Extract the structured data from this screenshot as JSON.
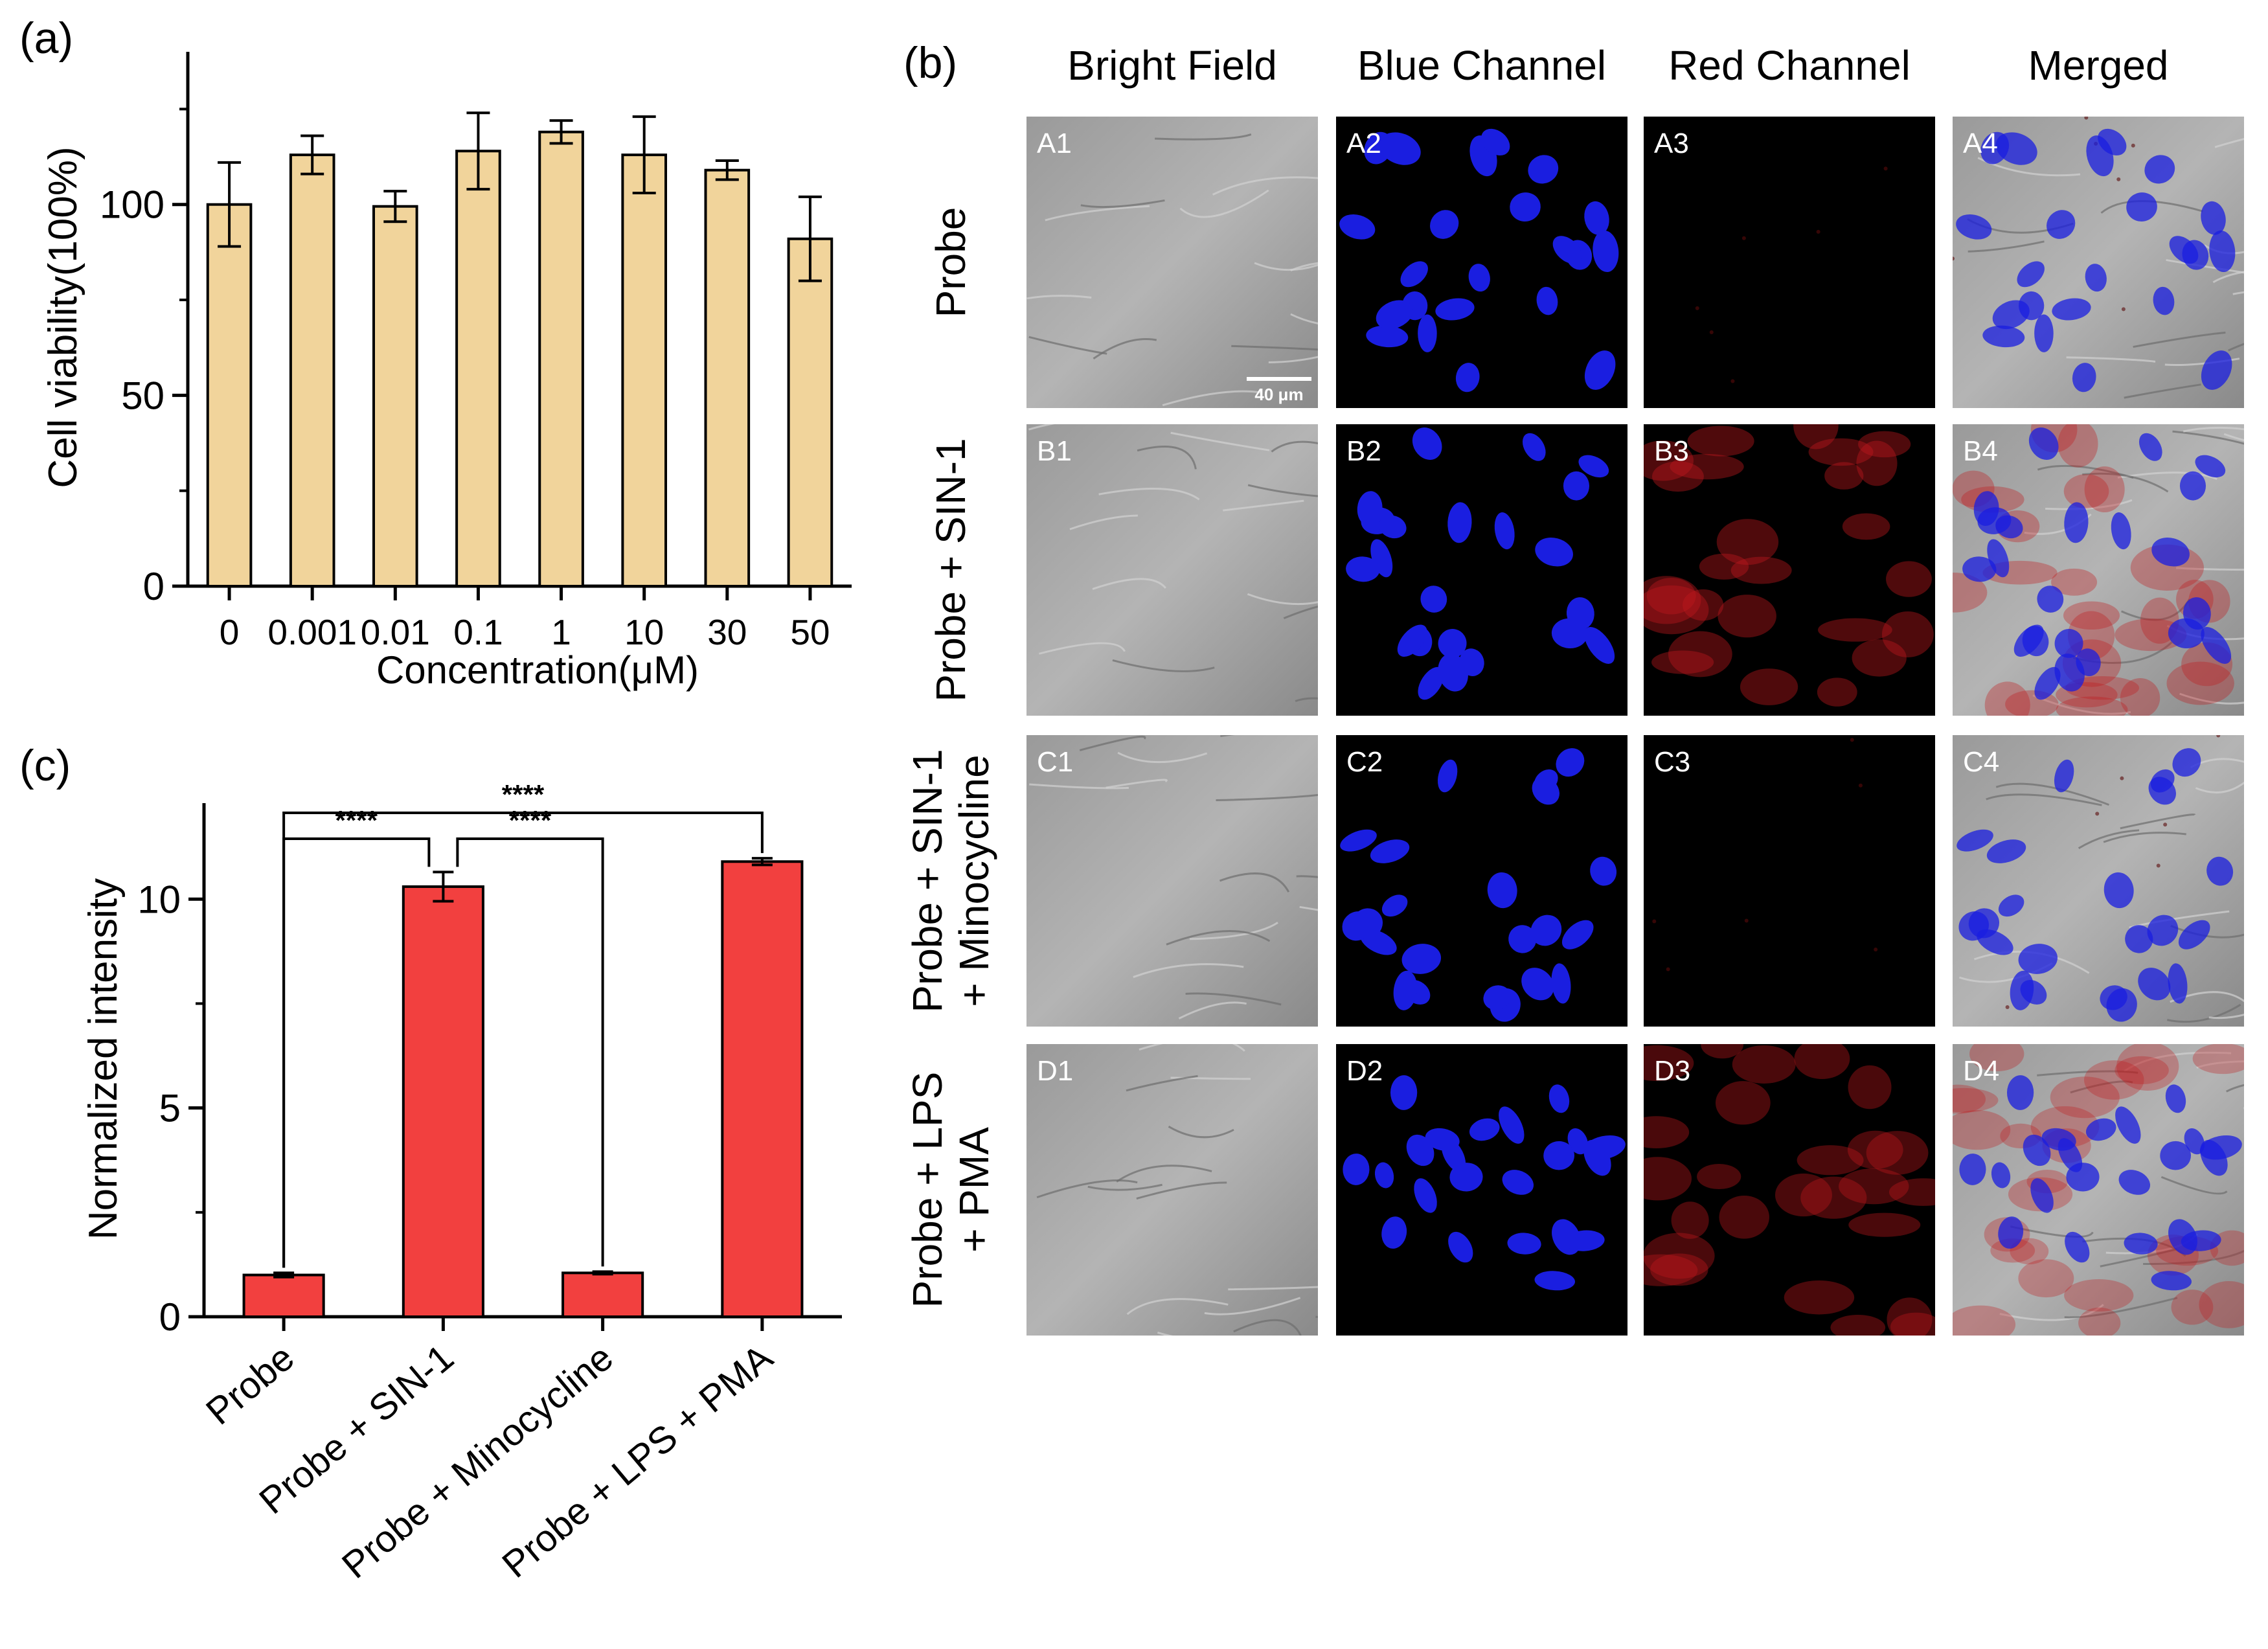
{
  "panel_labels": {
    "a": "(a)",
    "b": "(b)",
    "c": "(c)"
  },
  "colors": {
    "viability_bar": "#F1D49B",
    "intensity_bar": "#F2403F",
    "blue_nucleus": "#1a1ee0",
    "red_signal": "#c0181c"
  },
  "chart_data": [
    {
      "id": "a",
      "type": "bar",
      "title": "",
      "xlabel": "Concentration(μM)",
      "ylabel": "Cell viability(100%)",
      "categories": [
        "0",
        "0.001",
        "0.01",
        "0.1",
        "1",
        "10",
        "30",
        "50"
      ],
      "values": [
        100,
        113,
        99.5,
        114,
        119,
        113,
        109,
        91
      ],
      "errors": [
        11,
        5,
        4,
        10,
        3,
        10,
        2.5,
        11
      ],
      "ylim": [
        0,
        140
      ],
      "yticks": [
        0,
        50,
        100
      ],
      "grid": false
    },
    {
      "id": "c",
      "type": "bar",
      "title": "",
      "xlabel": "",
      "ylabel": "Normalized intensity",
      "categories": [
        "Probe",
        "Probe + SIN-1",
        "Probe + Minocycline",
        "Probe + LPS + PMA"
      ],
      "values": [
        1.0,
        10.3,
        1.05,
        10.9
      ],
      "errors": [
        0.05,
        0.35,
        0.03,
        0.08
      ],
      "ylim": [
        0,
        12.3
      ],
      "yticks": [
        0,
        5,
        10
      ],
      "significance": [
        {
          "from": 0,
          "to": 1,
          "label": "****",
          "level": 0
        },
        {
          "from": 1,
          "to": 2,
          "label": "****",
          "level": 0
        },
        {
          "from": 0,
          "to": 3,
          "label": "****",
          "level": 1
        }
      ],
      "grid": false
    }
  ],
  "microscopy": {
    "column_titles": [
      "Bright Field",
      "Blue Channel",
      "Red Channel",
      "Merged"
    ],
    "row_labels": [
      [
        "Probe"
      ],
      [
        "Probe + SIN-1"
      ],
      [
        "Probe + SIN-1",
        "+ Minocycline"
      ],
      [
        "Probe + LPS",
        "+ PMA"
      ]
    ],
    "tile_labels": [
      [
        "A1",
        "A2",
        "A3",
        "A4"
      ],
      [
        "B1",
        "B2",
        "B3",
        "B4"
      ],
      [
        "C1",
        "C2",
        "C3",
        "C4"
      ],
      [
        "D1",
        "D2",
        "D3",
        "D4"
      ]
    ],
    "red_levels": [
      0.05,
      0.75,
      0.08,
      0.7
    ],
    "scale_bar": "40 μm"
  }
}
